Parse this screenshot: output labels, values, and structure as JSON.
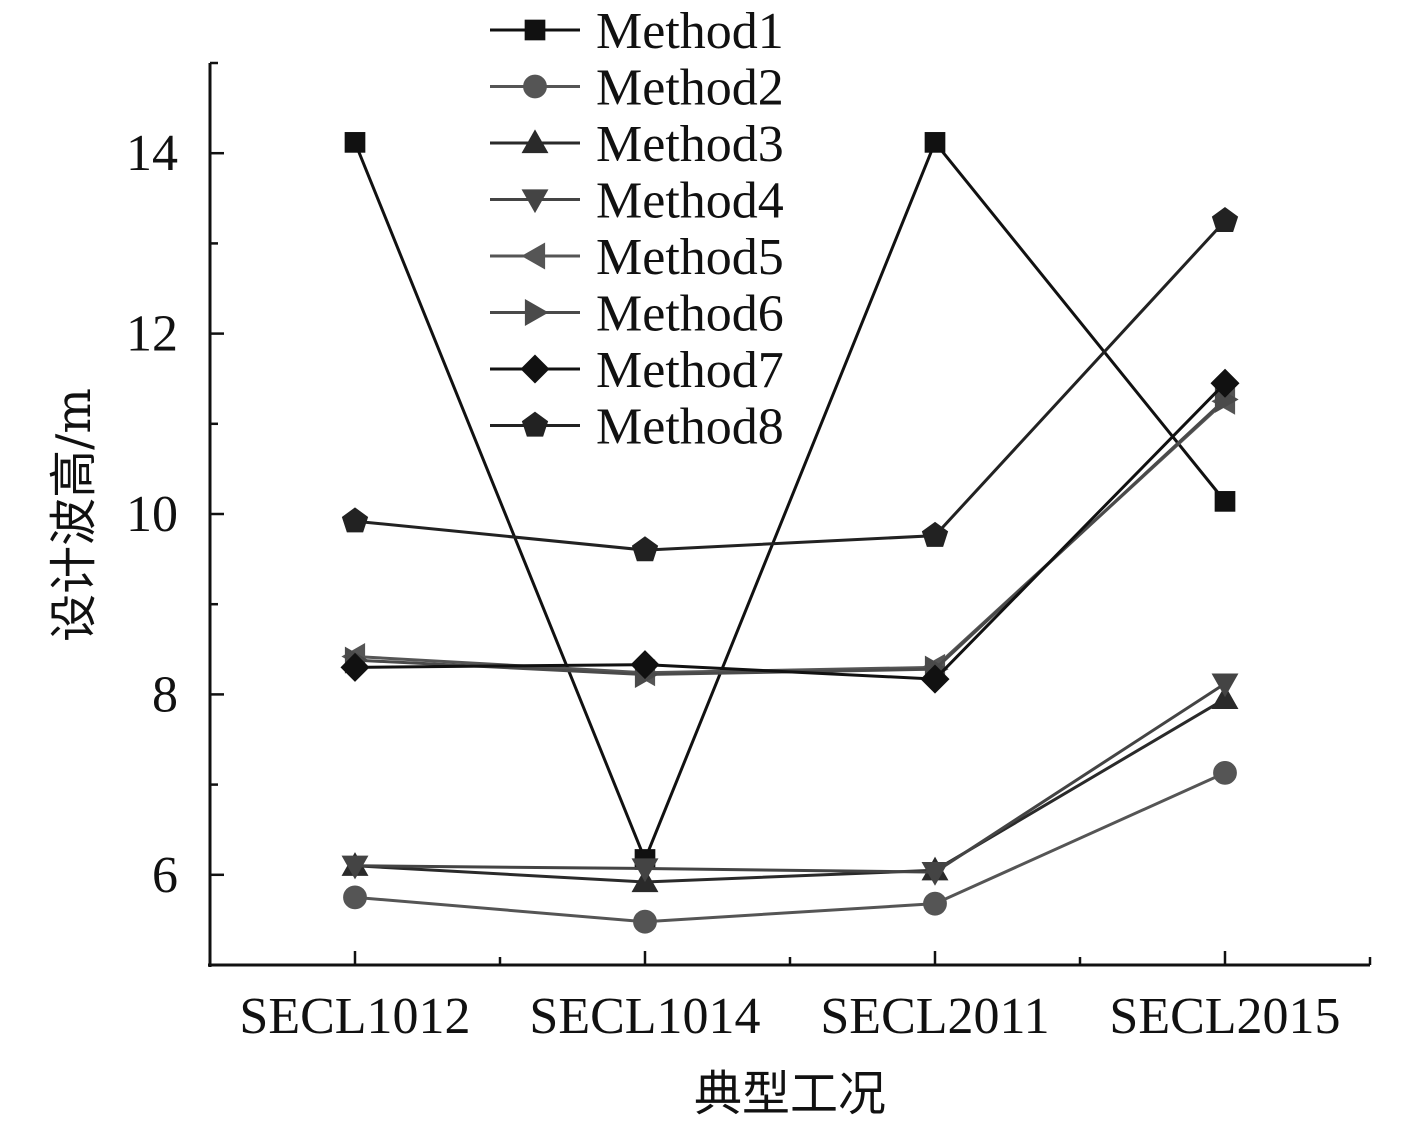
{
  "chart_data": {
    "type": "line",
    "title": "",
    "xlabel": "典型工况",
    "ylabel": "设计波高/m",
    "categories": [
      "SECL1012",
      "SECL1014",
      "SECL2011",
      "SECL2015"
    ],
    "ylim": [
      5,
      15
    ],
    "yticks": [
      6,
      8,
      10,
      12,
      14
    ],
    "grid": false,
    "legend_position": "top-center",
    "series": [
      {
        "name": "Method1",
        "marker": "square",
        "color": "#111111",
        "values": [
          14.12,
          6.17,
          14.12,
          10.14
        ]
      },
      {
        "name": "Method2",
        "marker": "circle",
        "color": "#555555",
        "values": [
          5.75,
          5.48,
          5.68,
          7.13
        ]
      },
      {
        "name": "Method3",
        "marker": "triangle-up",
        "color": "#2a2a2a",
        "values": [
          6.1,
          5.92,
          6.05,
          7.95
        ]
      },
      {
        "name": "Method4",
        "marker": "triangle-down",
        "color": "#444444",
        "values": [
          6.1,
          6.07,
          6.03,
          8.12
        ]
      },
      {
        "name": "Method5",
        "marker": "triangle-left",
        "color": "#555555",
        "values": [
          8.42,
          8.24,
          8.3,
          11.25
        ]
      },
      {
        "name": "Method6",
        "marker": "triangle-right",
        "color": "#4a4a4a",
        "values": [
          8.38,
          8.22,
          8.28,
          11.27
        ]
      },
      {
        "name": "Method7",
        "marker": "diamond",
        "color": "#111111",
        "values": [
          8.3,
          8.33,
          8.17,
          11.45
        ]
      },
      {
        "name": "Method8",
        "marker": "pentagon",
        "color": "#222222",
        "values": [
          9.92,
          9.6,
          9.76,
          13.25
        ]
      }
    ]
  }
}
